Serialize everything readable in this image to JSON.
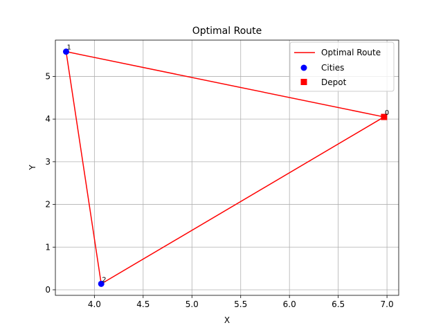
{
  "chart_data": {
    "type": "line",
    "title": "Optimal Route",
    "xlabel": "X",
    "ylabel": "Y",
    "xlim": [
      3.6,
      7.12
    ],
    "ylim": [
      -0.13,
      5.85
    ],
    "xticks": [
      4.0,
      4.5,
      5.0,
      5.5,
      6.0,
      6.5,
      7.0
    ],
    "yticks": [
      0,
      1,
      2,
      3,
      4,
      5
    ],
    "grid": true,
    "legend_position": "top-right",
    "route": {
      "name": "Optimal Route",
      "color": "#ff0000",
      "x": [
        6.97,
        3.71,
        4.07,
        6.97
      ],
      "y": [
        4.05,
        5.58,
        0.14,
        4.05
      ]
    },
    "cities": {
      "name": "Cities",
      "color": "#0000ff",
      "points": [
        {
          "label": "1",
          "x": 3.71,
          "y": 5.58
        },
        {
          "label": "2",
          "x": 4.07,
          "y": 0.14
        }
      ]
    },
    "depot": {
      "name": "Depot",
      "color": "#ff0000",
      "points": [
        {
          "label": "0",
          "x": 6.97,
          "y": 4.05
        }
      ]
    }
  }
}
